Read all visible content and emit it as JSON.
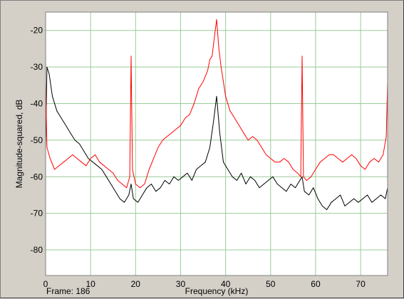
{
  "footer": {
    "frame_label": "Frame: 186"
  },
  "chart_data": {
    "type": "line",
    "xlabel": "Frequency (kHz)",
    "ylabel": "Magnitude-squared, dB",
    "xlim": [
      0,
      76
    ],
    "ylim": [
      -87,
      -15
    ],
    "xticks": [
      0,
      10,
      20,
      30,
      40,
      50,
      60,
      70
    ],
    "yticks": [
      -20,
      -30,
      -40,
      -50,
      -60,
      -70,
      -80
    ],
    "grid": true,
    "legend": "none",
    "series": [
      {
        "color": "#000000",
        "x": [
          0,
          0.3,
          0.8,
          1.5,
          2.5,
          3.5,
          4.5,
          5.5,
          6.5,
          7.5,
          8.5,
          9.5,
          10.5,
          11.5,
          12.5,
          13.5,
          14.5,
          15.5,
          16.5,
          17.5,
          18.5,
          19,
          19.5,
          20.5,
          21.5,
          22.5,
          23.5,
          24.5,
          25.5,
          26.5,
          27.5,
          28.5,
          29.5,
          30.5,
          31.5,
          32.5,
          33.5,
          34.5,
          35.5,
          36.5,
          37.3,
          38,
          38.7,
          39.5,
          40.5,
          41.5,
          42.5,
          43.5,
          44.5,
          45.5,
          46.5,
          47.5,
          48.5,
          49.5,
          50.5,
          51.5,
          52.5,
          53.5,
          54.5,
          55.5,
          56.5,
          57,
          57.5,
          58.5,
          59.5,
          60.5,
          61.5,
          62.5,
          63.5,
          64.5,
          65.5,
          66.5,
          67.5,
          68.5,
          69.5,
          70.5,
          71.5,
          72.5,
          73.5,
          74.5,
          75.5,
          76
        ],
        "y": [
          -52,
          -30,
          -32,
          -38,
          -42,
          -44,
          -46,
          -48,
          -50,
          -51,
          -53,
          -55,
          -56,
          -57,
          -58,
          -60,
          -62,
          -64,
          -66,
          -67,
          -65,
          -62,
          -66,
          -67,
          -65,
          -63,
          -62,
          -64,
          -63,
          -61,
          -62,
          -60,
          -61,
          -60,
          -59,
          -61,
          -58,
          -57,
          -56,
          -52,
          -45,
          -38,
          -48,
          -56,
          -58,
          -60,
          -61,
          -59,
          -62,
          -60,
          -61,
          -63,
          -62,
          -61,
          -60,
          -62,
          -63,
          -64,
          -62,
          -63,
          -61,
          -60,
          -64,
          -65,
          -63,
          -66,
          -68,
          -69,
          -67,
          -66,
          -65,
          -68,
          -67,
          -66,
          -67,
          -66,
          -65,
          -67,
          -66,
          -65,
          -66,
          -63
        ]
      },
      {
        "color": "#ff0000",
        "x": [
          0,
          0.3,
          1,
          2,
          3,
          4,
          5,
          6,
          7,
          8,
          9,
          10,
          11,
          12,
          13,
          14,
          15,
          16,
          17,
          18,
          18.7,
          19,
          19.3,
          20,
          21,
          22,
          23,
          24,
          25,
          26,
          27,
          28,
          29,
          30,
          31,
          32,
          33,
          34,
          35,
          36,
          36.5,
          37,
          37.5,
          38,
          38.5,
          39,
          39.5,
          40,
          41,
          42,
          43,
          44,
          45,
          46,
          47,
          48,
          49,
          50,
          51,
          52,
          53,
          54,
          55,
          56,
          56.7,
          57,
          57.3,
          58,
          59,
          60,
          61,
          62,
          63,
          64,
          65,
          66,
          67,
          68,
          69,
          70,
          71,
          72,
          73,
          74,
          75,
          75.7,
          76
        ],
        "y": [
          -34,
          -52,
          -55,
          -58,
          -57,
          -56,
          -55,
          -54,
          -55,
          -56,
          -57,
          -55,
          -54,
          -56,
          -57,
          -58,
          -59,
          -61,
          -62,
          -63,
          -60,
          -27,
          -58,
          -62,
          -63,
          -62,
          -58,
          -55,
          -52,
          -50,
          -49,
          -48,
          -47,
          -46,
          -44,
          -43,
          -40,
          -36,
          -34,
          -31,
          -28,
          -27,
          -22,
          -17,
          -25,
          -30,
          -34,
          -38,
          -42,
          -44,
          -46,
          -48,
          -50,
          -49,
          -50,
          -52,
          -54,
          -55,
          -56,
          -56,
          -55,
          -56,
          -58,
          -59,
          -60,
          -27,
          -60,
          -61,
          -60,
          -58,
          -56,
          -55,
          -54,
          -54,
          -55,
          -56,
          -55,
          -54,
          -55,
          -57,
          -58,
          -56,
          -55,
          -56,
          -54,
          -49,
          -34
        ]
      }
    ]
  }
}
